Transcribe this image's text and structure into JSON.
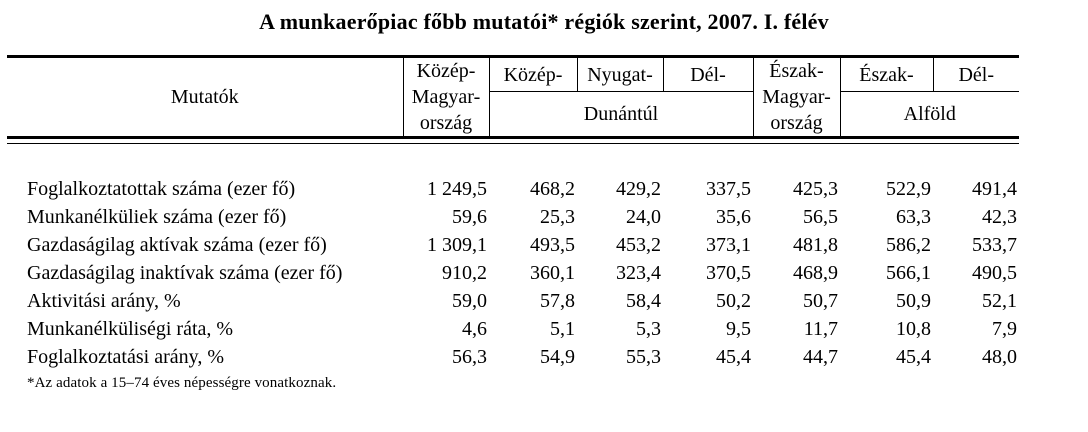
{
  "title": "A munkaerőpiac főbb mutatói* régiók szerint, 2007.  I. félév",
  "table": {
    "header": {
      "indicator": "Mutatók",
      "kozep_magyarorszag": {
        "line1": "Közép-",
        "line2": "Magyar-",
        "line3": "ország"
      },
      "dunantul": {
        "label": "Dunántúl",
        "sub1": "Közép-",
        "sub2": "Nyugat-",
        "sub3": "Dél-"
      },
      "eszak_magyarorszag": {
        "line1": "Észak-",
        "line2": "Magyar-",
        "line3": "ország"
      },
      "alfold": {
        "label": "Alföld",
        "sub1": "Észak-",
        "sub2": "Dél-"
      }
    },
    "columns": [
      "Közép-Magyarország",
      "Közép-Dunántúl",
      "Nyugat-Dunántúl",
      "Dél-Dunántúl",
      "Észak-Magyarország",
      "Észak-Alföld",
      "Dél-Alföld"
    ],
    "rows": [
      {
        "label": "Foglalkoztatottak száma (ezer fő)",
        "values": [
          "1 249,5",
          "468,2",
          "429,2",
          "337,5",
          "425,3",
          "522,9",
          "491,4"
        ]
      },
      {
        "label": "Munkanélküliek száma (ezer fő)",
        "values": [
          "59,6",
          "25,3",
          "24,0",
          "35,6",
          "56,5",
          "63,3",
          "42,3"
        ]
      },
      {
        "label": "Gazdaságilag aktívak száma (ezer fő)",
        "values": [
          "1 309,1",
          "493,5",
          "453,2",
          "373,1",
          "481,8",
          "586,2",
          "533,7"
        ]
      },
      {
        "label": "Gazdaságilag inaktívak száma (ezer fő)",
        "values": [
          "910,2",
          "360,1",
          "323,4",
          "370,5",
          "468,9",
          "566,1",
          "490,5"
        ]
      },
      {
        "label": "Aktivitási arány, %",
        "values": [
          "59,0",
          "57,8",
          "58,4",
          "50,2",
          "50,7",
          "50,9",
          "52,1"
        ]
      },
      {
        "label": "Munkanélküliségi ráta, %",
        "values": [
          "4,6",
          "5,1",
          "5,3",
          "9,5",
          "11,7",
          "10,8",
          "7,9"
        ]
      },
      {
        "label": "Foglalkoztatási arány, %",
        "values": [
          "56,3",
          "54,9",
          "55,3",
          "45,4",
          "44,7",
          "45,4",
          "48,0"
        ]
      }
    ]
  },
  "footnote": "*Az adatok a 15–74 éves népességre vonatkoznak."
}
